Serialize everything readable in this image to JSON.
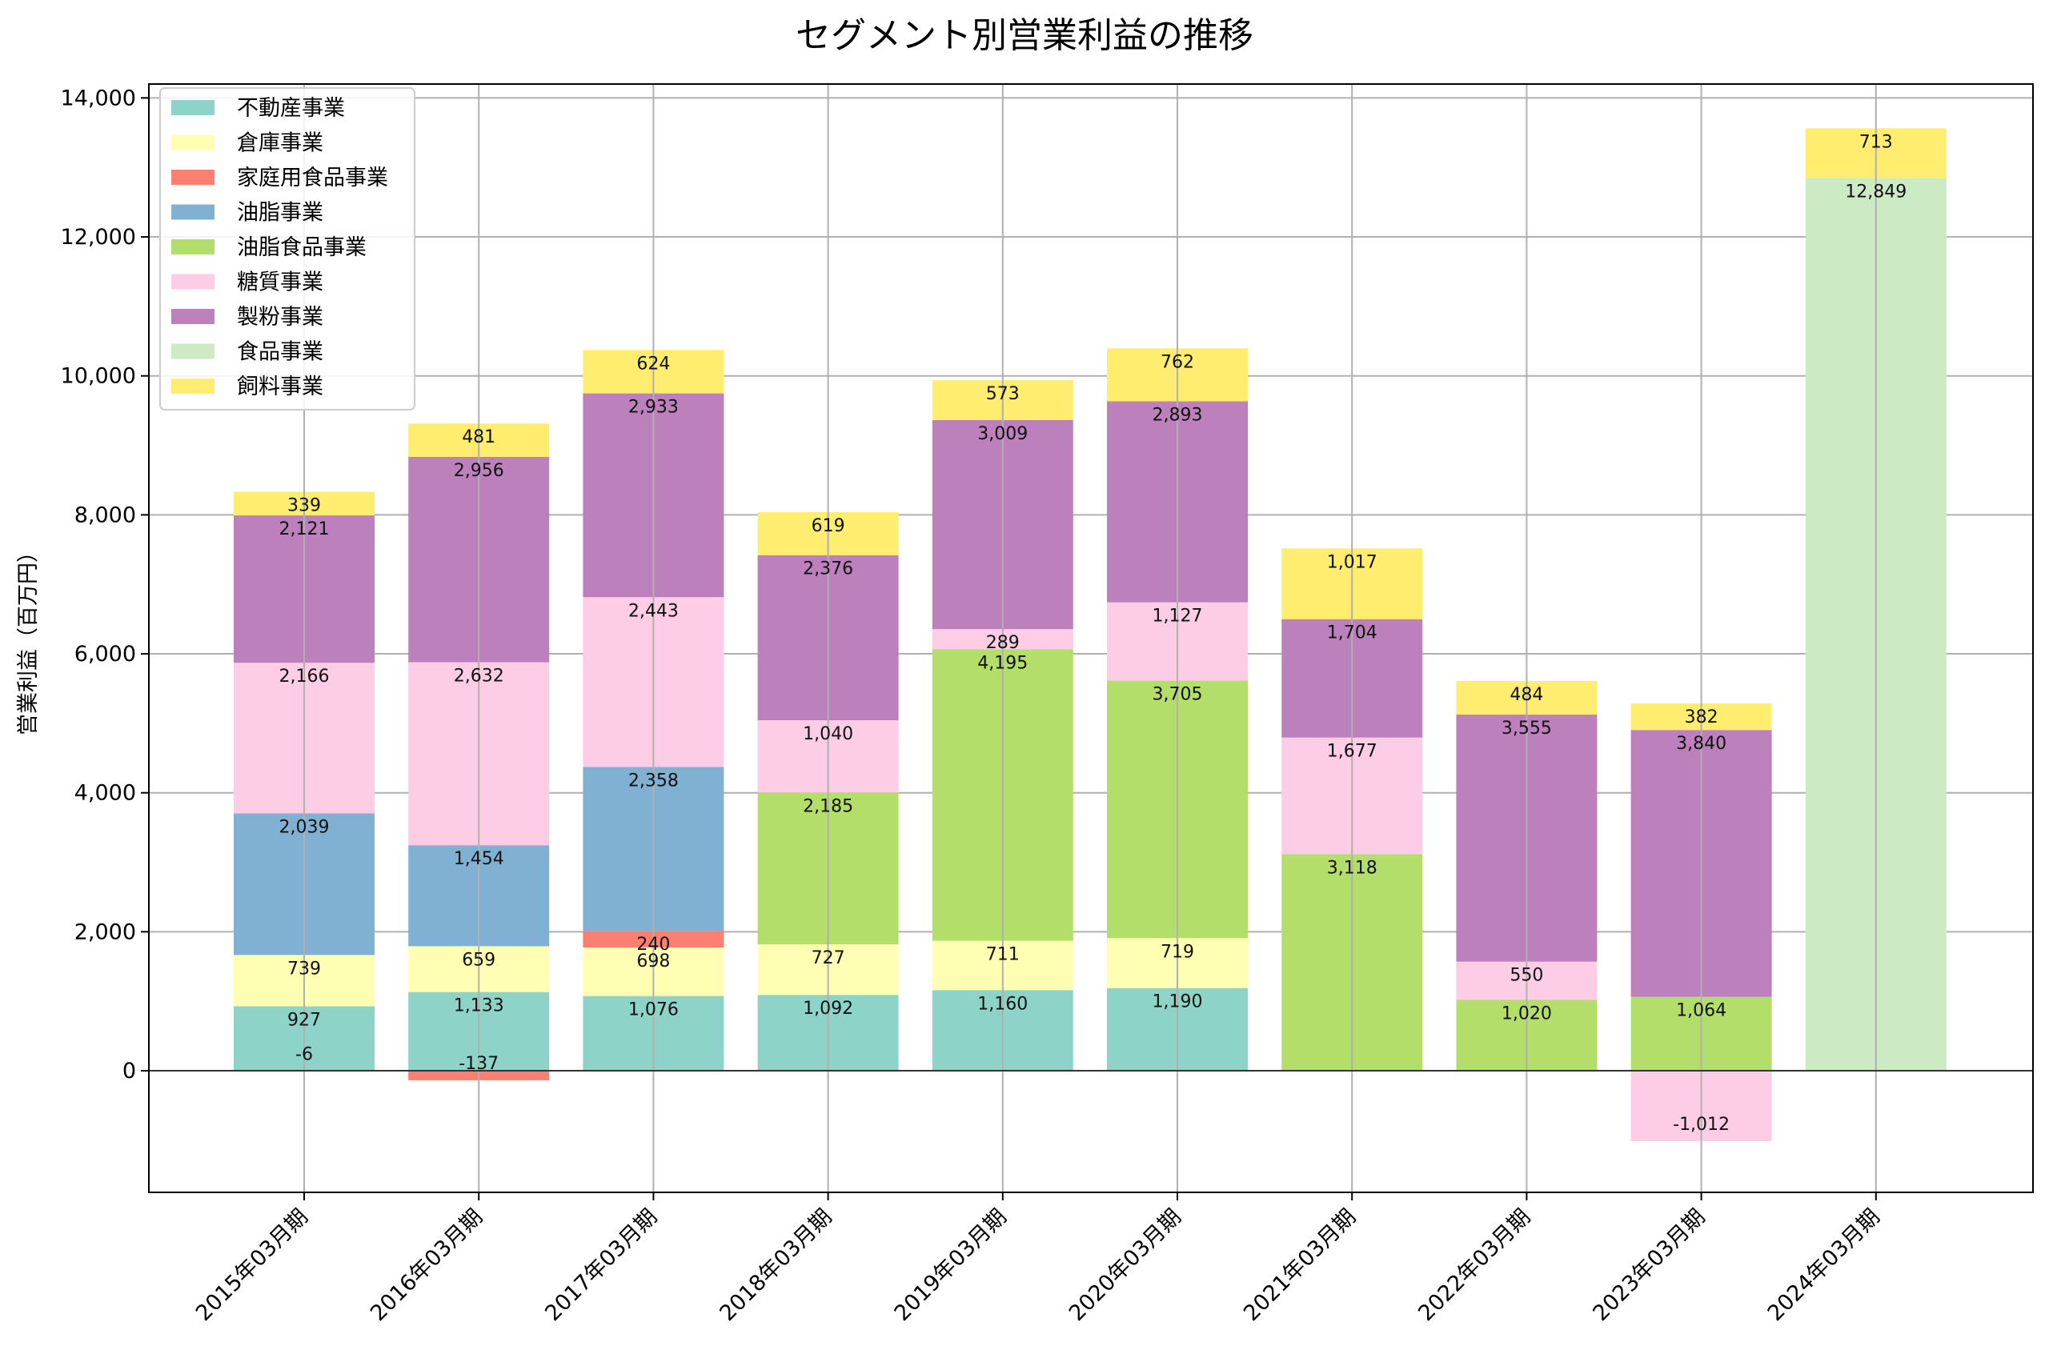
{
  "chart_data": {
    "type": "bar",
    "stacked": true,
    "title": "セグメント別営業利益の推移",
    "xlabel": "",
    "ylabel": "営業利益（百万円）",
    "ylim": [
      -1750,
      14200
    ],
    "yticks": [
      0,
      2000,
      4000,
      6000,
      8000,
      10000,
      12000,
      14000
    ],
    "ytick_labels": [
      "0",
      "2,000",
      "4,000",
      "6,000",
      "8,000",
      "10,000",
      "12,000",
      "14,000"
    ],
    "grid": true,
    "legend_position": "top-left",
    "categories": [
      "2015年03月期",
      "2016年03月期",
      "2017年03月期",
      "2018年03月期",
      "2019年03月期",
      "2020年03月期",
      "2021年03月期",
      "2022年03月期",
      "2023年03月期",
      "2024年03月期"
    ],
    "series": [
      {
        "name": "不動産事業",
        "color": "#8dd3c7",
        "values": [
          927,
          1133,
          1076,
          1092,
          1160,
          1190,
          null,
          null,
          null,
          null
        ]
      },
      {
        "name": "倉庫事業",
        "color": "#ffffb3",
        "values": [
          739,
          659,
          698,
          727,
          711,
          719,
          null,
          null,
          null,
          null
        ]
      },
      {
        "name": "家庭用食品事業",
        "color": "#fb8072",
        "values": [
          -6,
          -137,
          240,
          null,
          null,
          null,
          null,
          null,
          null,
          null
        ]
      },
      {
        "name": "油脂事業",
        "color": "#80b1d3",
        "values": [
          2039,
          1454,
          2358,
          null,
          null,
          null,
          null,
          null,
          null,
          null
        ]
      },
      {
        "name": "油脂食品事業",
        "color": "#b3de69",
        "values": [
          null,
          null,
          null,
          2185,
          4195,
          3705,
          3118,
          1020,
          1064,
          null
        ]
      },
      {
        "name": "糖質事業",
        "color": "#fccde5",
        "values": [
          2166,
          2632,
          2443,
          1040,
          289,
          1127,
          1677,
          550,
          -1012,
          null
        ]
      },
      {
        "name": "製粉事業",
        "color": "#bc80bd",
        "values": [
          2121,
          2956,
          2933,
          2376,
          3009,
          2893,
          1704,
          3555,
          3840,
          null
        ]
      },
      {
        "name": "食品事業",
        "color": "#ccebc5",
        "values": [
          null,
          null,
          null,
          null,
          null,
          null,
          null,
          null,
          null,
          12849
        ]
      },
      {
        "name": "飼料事業",
        "color": "#ffed6f",
        "values": [
          339,
          481,
          624,
          619,
          573,
          762,
          1017,
          484,
          382,
          713
        ]
      }
    ]
  }
}
